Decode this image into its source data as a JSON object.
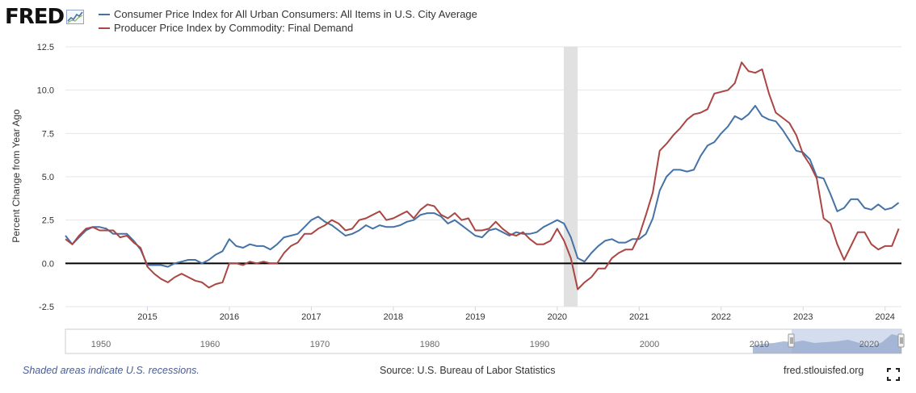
{
  "logo": {
    "text": "FRED"
  },
  "colors": {
    "cpi": "#4572a7",
    "ppi": "#aa4643",
    "recession": "#e1e1e1",
    "zero_line": "#000000",
    "navigator": "#c5d1e8"
  },
  "legend": {
    "cpi": "Consumer Price Index for All Urban Consumers: All Items in U.S. City Average",
    "ppi": "Producer Price Index by Commodity: Final Demand"
  },
  "footer": {
    "recession_note": "Shaded areas indicate U.S. recessions.",
    "source": "Source: U.S. Bureau of Labor Statistics",
    "site": "fred.stlouisfed.org"
  },
  "navigator": {
    "ticks": [
      "1950",
      "1960",
      "1970",
      "1980",
      "1990",
      "2000",
      "2010",
      "2020"
    ]
  },
  "chart_data": {
    "type": "line",
    "ylabel": "Percent Change from Year Ago",
    "xlim": [
      2014.0,
      2024.2
    ],
    "ylim": [
      -2.5,
      12.5
    ],
    "yticks": [
      "12.5",
      "10.0",
      "7.5",
      "5.0",
      "2.5",
      "0.0",
      "-2.5"
    ],
    "ytick_values": [
      12.5,
      10.0,
      7.5,
      5.0,
      2.5,
      0.0,
      -2.5
    ],
    "xticks": [
      "2015",
      "2016",
      "2017",
      "2018",
      "2019",
      "2020",
      "2021",
      "2022",
      "2023",
      "2024"
    ],
    "xtick_values": [
      2015,
      2016,
      2017,
      2018,
      2019,
      2020,
      2021,
      2022,
      2023,
      2024
    ],
    "recession": [
      2020.08,
      2020.25
    ],
    "zero_line": 0,
    "grid": "horizontal",
    "x_start": 2014.0,
    "x_step_months": 1,
    "series": [
      {
        "name": "Consumer Price Index for All Urban Consumers: All Items in U.S. City Average",
        "color": "#4572a7",
        "values": [
          1.6,
          1.1,
          1.5,
          1.9,
          2.1,
          2.1,
          2.0,
          1.7,
          1.7,
          1.7,
          1.3,
          0.8,
          -0.1,
          -0.1,
          -0.1,
          -0.2,
          0.0,
          0.1,
          0.2,
          0.2,
          0.0,
          0.2,
          0.5,
          0.7,
          1.4,
          1.0,
          0.9,
          1.1,
          1.0,
          1.0,
          0.8,
          1.1,
          1.5,
          1.6,
          1.7,
          2.1,
          2.5,
          2.7,
          2.4,
          2.2,
          1.9,
          1.6,
          1.7,
          1.9,
          2.2,
          2.0,
          2.2,
          2.1,
          2.1,
          2.2,
          2.4,
          2.5,
          2.8,
          2.9,
          2.9,
          2.7,
          2.3,
          2.5,
          2.2,
          1.9,
          1.6,
          1.5,
          1.9,
          2.0,
          1.8,
          1.6,
          1.8,
          1.7,
          1.7,
          1.8,
          2.1,
          2.3,
          2.5,
          2.3,
          1.5,
          0.3,
          0.1,
          0.6,
          1.0,
          1.3,
          1.4,
          1.2,
          1.2,
          1.4,
          1.4,
          1.7,
          2.6,
          4.2,
          5.0,
          5.4,
          5.4,
          5.3,
          5.4,
          6.2,
          6.8,
          7.0,
          7.5,
          7.9,
          8.5,
          8.3,
          8.6,
          9.1,
          8.5,
          8.3,
          8.2,
          7.7,
          7.1,
          6.5,
          6.4,
          6.0,
          5.0,
          4.9,
          4.0,
          3.0,
          3.2,
          3.7,
          3.7,
          3.2,
          3.1,
          3.4,
          3.1,
          3.2,
          3.5
        ]
      },
      {
        "name": "Producer Price Index by Commodity: Final Demand",
        "color": "#aa4643",
        "values": [
          1.4,
          1.1,
          1.6,
          2.0,
          2.1,
          1.9,
          1.9,
          1.9,
          1.5,
          1.6,
          1.2,
          0.9,
          -0.2,
          -0.6,
          -0.9,
          -1.1,
          -0.8,
          -0.6,
          -0.8,
          -1.0,
          -1.1,
          -1.4,
          -1.2,
          -1.1,
          0.0,
          0.0,
          -0.1,
          0.1,
          0.0,
          0.1,
          0.0,
          0.0,
          0.6,
          1.0,
          1.2,
          1.7,
          1.7,
          2.0,
          2.2,
          2.5,
          2.3,
          1.9,
          2.0,
          2.5,
          2.6,
          2.8,
          3.0,
          2.5,
          2.6,
          2.8,
          3.0,
          2.6,
          3.1,
          3.4,
          3.3,
          2.8,
          2.6,
          2.9,
          2.5,
          2.6,
          1.9,
          1.9,
          2.0,
          2.4,
          2.0,
          1.7,
          1.6,
          1.8,
          1.4,
          1.1,
          1.1,
          1.3,
          2.0,
          1.3,
          0.3,
          -1.5,
          -1.1,
          -0.8,
          -0.3,
          -0.3,
          0.3,
          0.6,
          0.8,
          0.8,
          1.6,
          2.8,
          4.1,
          6.5,
          6.9,
          7.4,
          7.8,
          8.3,
          8.6,
          8.7,
          8.9,
          9.8,
          9.9,
          10.0,
          10.4,
          11.6,
          11.1,
          11.0,
          11.2,
          9.8,
          8.7,
          8.4,
          8.1,
          7.4,
          6.3,
          5.7,
          4.9,
          2.6,
          2.3,
          1.1,
          0.2,
          1.0,
          1.8,
          1.8,
          1.1,
          0.8,
          1.0,
          1.0,
          2.0
        ]
      }
    ]
  }
}
